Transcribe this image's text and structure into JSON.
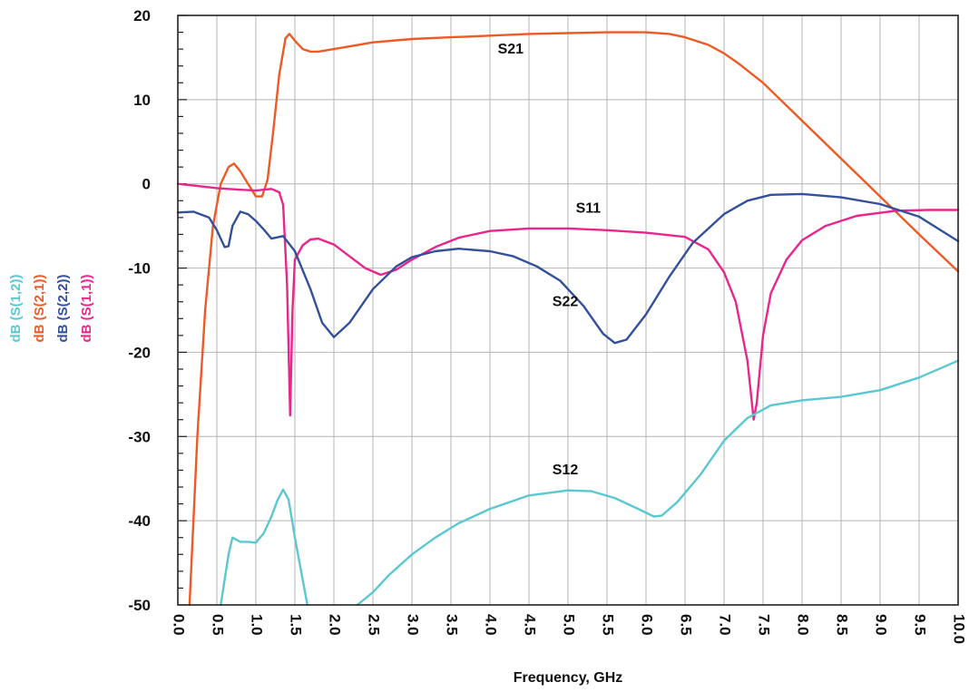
{
  "chart_data": {
    "type": "line",
    "xlabel": "Frequency, GHz",
    "xlim": [
      0.0,
      10.0
    ],
    "ylim": [
      -50,
      20
    ],
    "x_ticks": [
      "0.0",
      "0.5",
      "1.0",
      "1.5",
      "2.0",
      "2.5",
      "3.0",
      "3.5",
      "4.0",
      "4.5",
      "5.0",
      "5.5",
      "6.0",
      "6.5",
      "7.0",
      "7.5",
      "8.0",
      "8.5",
      "9.0",
      "9.5",
      "10.0"
    ],
    "y_ticks": [
      "20",
      "10",
      "0",
      "-10",
      "-20",
      "-30",
      "-40",
      "-50"
    ],
    "y_tick_values": [
      20,
      10,
      0,
      -10,
      -20,
      -30,
      -40,
      -50
    ],
    "grid": true,
    "ylabels": [
      {
        "text": "dB (S(1,2))",
        "color": "#5bc8d1"
      },
      {
        "text": "dB (S(2,1))",
        "color": "#ee5a24"
      },
      {
        "text": "dB (S(2,2))",
        "color": "#34509a"
      },
      {
        "text": "dB (S(1,1))",
        "color": "#e8268c"
      }
    ],
    "series": [
      {
        "key": "S21",
        "color": "#ee5a24",
        "points": [
          [
            0.15,
            -50
          ],
          [
            0.25,
            -30
          ],
          [
            0.35,
            -15
          ],
          [
            0.45,
            -5
          ],
          [
            0.55,
            0
          ],
          [
            0.65,
            2
          ],
          [
            0.72,
            2.4
          ],
          [
            0.8,
            1.5
          ],
          [
            0.9,
            0
          ],
          [
            1.0,
            -1.5
          ],
          [
            1.08,
            -1.5
          ],
          [
            1.15,
            0.5
          ],
          [
            1.22,
            6
          ],
          [
            1.3,
            13
          ],
          [
            1.38,
            17.3
          ],
          [
            1.43,
            17.8
          ],
          [
            1.5,
            17
          ],
          [
            1.6,
            16
          ],
          [
            1.7,
            15.7
          ],
          [
            1.8,
            15.7
          ],
          [
            2.0,
            16
          ],
          [
            2.5,
            16.8
          ],
          [
            3.0,
            17.2
          ],
          [
            3.5,
            17.4
          ],
          [
            4.0,
            17.6
          ],
          [
            4.5,
            17.8
          ],
          [
            5.0,
            17.9
          ],
          [
            5.5,
            18
          ],
          [
            6.0,
            18
          ],
          [
            6.3,
            17.8
          ],
          [
            6.5,
            17.4
          ],
          [
            6.8,
            16.5
          ],
          [
            7.0,
            15.5
          ],
          [
            7.2,
            14.2
          ],
          [
            7.5,
            12
          ],
          [
            8.0,
            7.5
          ],
          [
            8.5,
            3
          ],
          [
            9.0,
            -1.5
          ],
          [
            9.5,
            -6
          ],
          [
            10.0,
            -10.4
          ]
        ]
      },
      {
        "key": "S11",
        "color": "#e8268c",
        "points": [
          [
            0.0,
            0
          ],
          [
            0.2,
            -0.2
          ],
          [
            0.5,
            -0.5
          ],
          [
            0.8,
            -0.7
          ],
          [
            1.0,
            -0.8
          ],
          [
            1.2,
            -0.6
          ],
          [
            1.3,
            -1
          ],
          [
            1.35,
            -2.5
          ],
          [
            1.4,
            -12
          ],
          [
            1.44,
            -27.5
          ],
          [
            1.47,
            -15
          ],
          [
            1.5,
            -9
          ],
          [
            1.6,
            -7.3
          ],
          [
            1.7,
            -6.6
          ],
          [
            1.8,
            -6.5
          ],
          [
            2.0,
            -7.2
          ],
          [
            2.2,
            -8.6
          ],
          [
            2.4,
            -10
          ],
          [
            2.6,
            -10.8
          ],
          [
            2.8,
            -10.2
          ],
          [
            3.0,
            -9
          ],
          [
            3.3,
            -7.5
          ],
          [
            3.6,
            -6.4
          ],
          [
            4.0,
            -5.6
          ],
          [
            4.5,
            -5.3
          ],
          [
            5.0,
            -5.3
          ],
          [
            5.5,
            -5.5
          ],
          [
            6.0,
            -5.8
          ],
          [
            6.5,
            -6.3
          ],
          [
            6.8,
            -7.8
          ],
          [
            7.0,
            -10.5
          ],
          [
            7.15,
            -14
          ],
          [
            7.3,
            -21
          ],
          [
            7.38,
            -28
          ],
          [
            7.42,
            -26
          ],
          [
            7.5,
            -18
          ],
          [
            7.6,
            -13
          ],
          [
            7.8,
            -9
          ],
          [
            8.0,
            -6.7
          ],
          [
            8.3,
            -5
          ],
          [
            8.7,
            -3.8
          ],
          [
            9.2,
            -3.2
          ],
          [
            9.6,
            -3.1
          ],
          [
            10.0,
            -3.1
          ]
        ]
      },
      {
        "key": "S22",
        "color": "#34509a",
        "points": [
          [
            0.0,
            -3.4
          ],
          [
            0.2,
            -3.3
          ],
          [
            0.4,
            -4
          ],
          [
            0.5,
            -5.5
          ],
          [
            0.6,
            -7.5
          ],
          [
            0.65,
            -7.4
          ],
          [
            0.7,
            -5
          ],
          [
            0.8,
            -3.3
          ],
          [
            0.9,
            -3.6
          ],
          [
            1.0,
            -4.4
          ],
          [
            1.1,
            -5.4
          ],
          [
            1.2,
            -6.5
          ],
          [
            1.35,
            -6.2
          ],
          [
            1.5,
            -8
          ],
          [
            1.7,
            -12.5
          ],
          [
            1.85,
            -16.5
          ],
          [
            2.0,
            -18.2
          ],
          [
            2.2,
            -16.5
          ],
          [
            2.5,
            -12.5
          ],
          [
            2.8,
            -9.8
          ],
          [
            3.0,
            -8.7
          ],
          [
            3.3,
            -8
          ],
          [
            3.6,
            -7.7
          ],
          [
            4.0,
            -8
          ],
          [
            4.3,
            -8.6
          ],
          [
            4.6,
            -9.8
          ],
          [
            4.9,
            -11.5
          ],
          [
            5.2,
            -14.5
          ],
          [
            5.45,
            -17.8
          ],
          [
            5.6,
            -18.9
          ],
          [
            5.75,
            -18.5
          ],
          [
            6.0,
            -15.5
          ],
          [
            6.3,
            -11
          ],
          [
            6.6,
            -7
          ],
          [
            7.0,
            -3.6
          ],
          [
            7.3,
            -2
          ],
          [
            7.6,
            -1.3
          ],
          [
            8.0,
            -1.2
          ],
          [
            8.5,
            -1.6
          ],
          [
            9.0,
            -2.4
          ],
          [
            9.5,
            -3.9
          ],
          [
            10.0,
            -6.8
          ]
        ]
      },
      {
        "key": "S12",
        "color": "#5bc8d1",
        "segments": [
          [
            [
              0.55,
              -50
            ],
            [
              0.6,
              -47
            ],
            [
              0.65,
              -44
            ],
            [
              0.7,
              -42
            ],
            [
              0.8,
              -42.5
            ],
            [
              0.9,
              -42.5
            ],
            [
              1.0,
              -42.6
            ],
            [
              1.1,
              -41.5
            ],
            [
              1.2,
              -39.5
            ],
            [
              1.28,
              -37.5
            ],
            [
              1.35,
              -36.3
            ],
            [
              1.42,
              -37.5
            ],
            [
              1.5,
              -42
            ],
            [
              1.6,
              -47
            ],
            [
              1.66,
              -50
            ]
          ],
          [
            [
              2.3,
              -50
            ],
            [
              2.5,
              -48.5
            ],
            [
              2.7,
              -46.5
            ],
            [
              3.0,
              -44
            ],
            [
              3.3,
              -42
            ],
            [
              3.6,
              -40.3
            ],
            [
              4.0,
              -38.6
            ],
            [
              4.5,
              -37
            ],
            [
              5.0,
              -36.4
            ],
            [
              5.3,
              -36.5
            ],
            [
              5.6,
              -37.3
            ],
            [
              5.9,
              -38.6
            ],
            [
              6.1,
              -39.5
            ],
            [
              6.2,
              -39.4
            ],
            [
              6.4,
              -37.8
            ],
            [
              6.7,
              -34.5
            ],
            [
              7.0,
              -30.5
            ],
            [
              7.3,
              -27.8
            ],
            [
              7.6,
              -26.3
            ],
            [
              8.0,
              -25.7
            ],
            [
              8.5,
              -25.3
            ],
            [
              9.0,
              -24.5
            ],
            [
              9.5,
              -23
            ],
            [
              10.0,
              -21
            ]
          ]
        ]
      }
    ],
    "annotations": [
      {
        "text": "S21",
        "x": 4.1,
        "y": 15.5
      },
      {
        "text": "S11",
        "x": 5.1,
        "y": -3.4
      },
      {
        "text": "S22",
        "x": 4.8,
        "y": -14.5
      },
      {
        "text": "S12",
        "x": 4.8,
        "y": -34.5
      }
    ]
  }
}
